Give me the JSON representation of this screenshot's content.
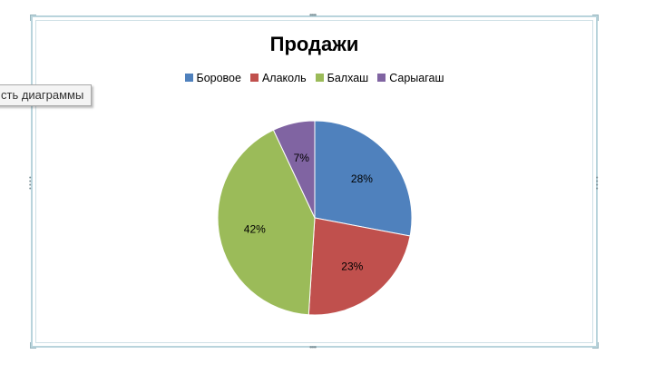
{
  "tooltip": {
    "text": "сть диаграммы"
  },
  "chart_data": {
    "type": "pie",
    "title": "Продажи",
    "legend_position": "top",
    "slices": [
      {
        "label": "Боровое",
        "value": 28,
        "display": "28%",
        "color": "#4f81bd"
      },
      {
        "label": "Алаколь",
        "value": 23,
        "display": "23%",
        "color": "#c0504d"
      },
      {
        "label": "Балхаш",
        "value": 42,
        "display": "42%",
        "color": "#9bbb59"
      },
      {
        "label": "Сарыагаш",
        "value": 7,
        "display": "7%",
        "color": "#8064a2"
      }
    ]
  }
}
